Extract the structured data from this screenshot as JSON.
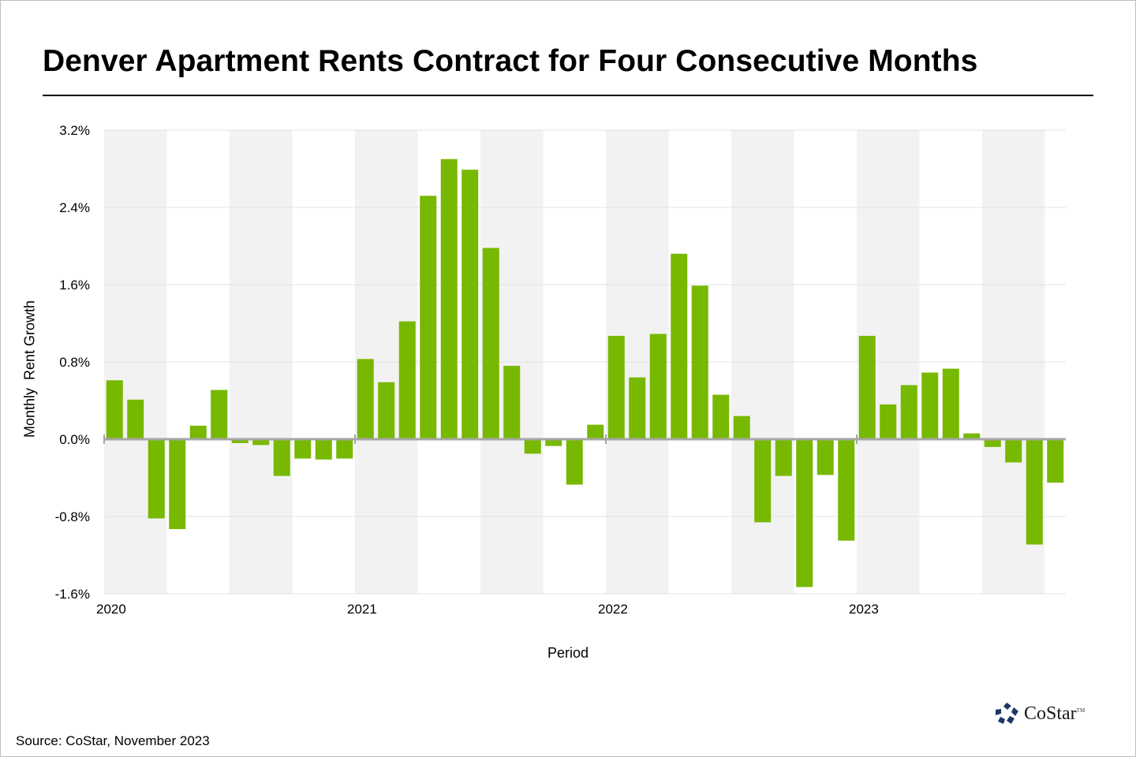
{
  "title": "Denver Apartment Rents Contract for Four Consecutive Months",
  "source": "Source: CoStar, November 2023",
  "logo": {
    "name": "CoStar",
    "tm": "TM",
    "icon": "costar-star-icon"
  },
  "colors": {
    "bar": "#77b800",
    "band": "#f2f2f2",
    "grid": "#e3e3e3",
    "axis": "#a6a6a6"
  },
  "chart_data": {
    "type": "bar",
    "title": "Denver Apartment Rents Contract for Four Consecutive Months",
    "xlabel": "Period",
    "ylabel": "Monthly  Rent Growth",
    "ylim": [
      -1.6,
      3.2
    ],
    "yticks": [
      3.2,
      2.4,
      1.6,
      0.8,
      0.0,
      -0.8,
      -1.6
    ],
    "ytick_labels": [
      "3.2%",
      "2.4%",
      "1.6%",
      "0.8%",
      "0.0%",
      "-0.8%",
      "-1.6%"
    ],
    "xtick_labels": [
      "2020",
      "2021",
      "2022",
      "2023"
    ],
    "grid": true,
    "legend": "none",
    "shading": "alternating quarters",
    "categories": [
      "2020-01",
      "2020-02",
      "2020-03",
      "2020-04",
      "2020-05",
      "2020-06",
      "2020-07",
      "2020-08",
      "2020-09",
      "2020-10",
      "2020-11",
      "2020-12",
      "2021-01",
      "2021-02",
      "2021-03",
      "2021-04",
      "2021-05",
      "2021-06",
      "2021-07",
      "2021-08",
      "2021-09",
      "2021-10",
      "2021-11",
      "2021-12",
      "2022-01",
      "2022-02",
      "2022-03",
      "2022-04",
      "2022-05",
      "2022-06",
      "2022-07",
      "2022-08",
      "2022-09",
      "2022-10",
      "2022-11",
      "2022-12",
      "2023-01",
      "2023-02",
      "2023-03",
      "2023-04",
      "2023-05",
      "2023-06",
      "2023-07",
      "2023-08",
      "2023-09",
      "2023-10"
    ],
    "values": [
      0.61,
      0.41,
      -0.82,
      -0.93,
      0.14,
      0.51,
      -0.04,
      -0.06,
      -0.38,
      -0.2,
      -0.21,
      -0.2,
      0.83,
      0.59,
      1.22,
      2.52,
      2.9,
      2.79,
      1.98,
      0.76,
      -0.15,
      -0.07,
      -0.47,
      0.15,
      1.07,
      0.64,
      1.09,
      1.92,
      1.59,
      0.46,
      0.24,
      -0.86,
      -0.38,
      -1.53,
      -0.37,
      -1.05,
      1.07,
      0.36,
      0.56,
      0.69,
      0.73,
      0.06,
      -0.08,
      -0.24,
      -1.09,
      -0.45
    ]
  }
}
